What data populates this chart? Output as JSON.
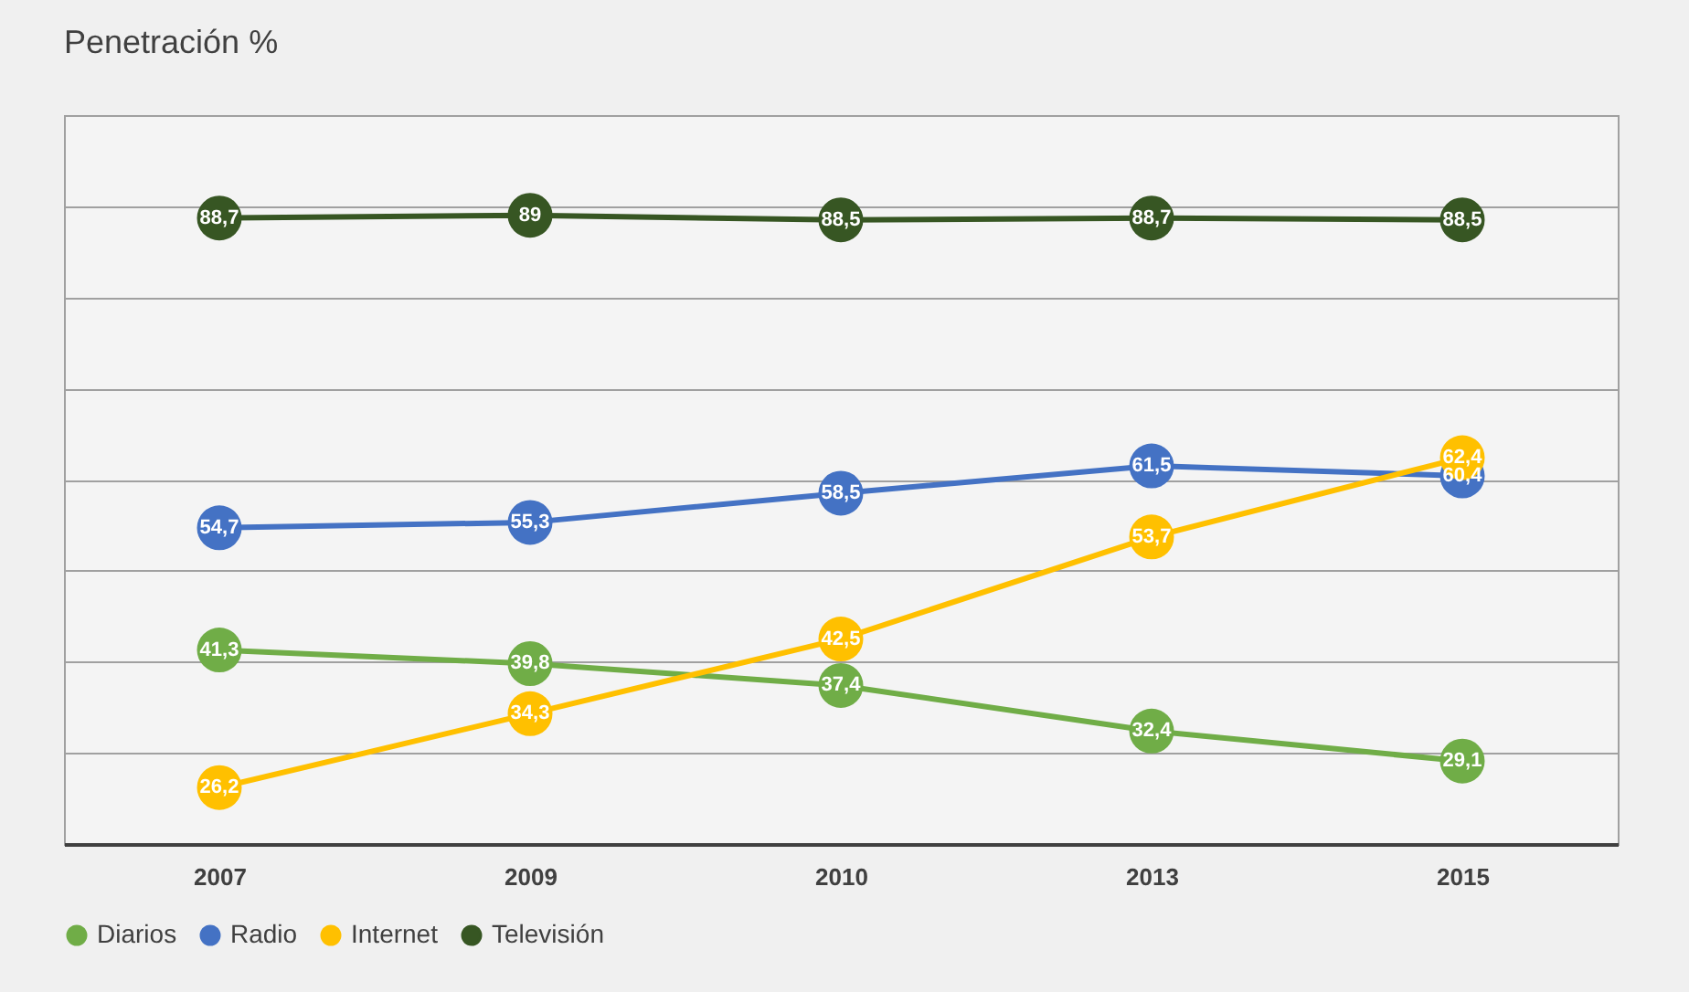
{
  "chart_data": {
    "type": "line",
    "title": "Penetración %",
    "categories": [
      "2007",
      "2009",
      "2010",
      "2013",
      "2015"
    ],
    "series": [
      {
        "name": "Diarios",
        "color": "#70ad47",
        "values": [
          41.3,
          39.8,
          37.4,
          32.4,
          29.1
        ],
        "value_labels": [
          "41,3",
          "39,8",
          "37,4",
          "32,4",
          "29,1"
        ]
      },
      {
        "name": "Radio",
        "color": "#4472c4",
        "values": [
          54.7,
          55.3,
          58.5,
          61.5,
          60.4
        ],
        "value_labels": [
          "54,7",
          "55,3",
          "58,5",
          "61,5",
          "60,4"
        ]
      },
      {
        "name": "Internet",
        "color": "#ffc000",
        "values": [
          26.2,
          34.3,
          42.5,
          53.7,
          62.4
        ],
        "value_labels": [
          "26,2",
          "34,3",
          "42,5",
          "53,7",
          "62,4"
        ]
      },
      {
        "name": "Televisión",
        "color": "#375623",
        "values": [
          88.7,
          89,
          88.5,
          88.7,
          88.5
        ],
        "value_labels": [
          "88,7",
          "89",
          "88,5",
          "88,7",
          "88,5"
        ]
      }
    ],
    "ylim": [
      20,
      100
    ],
    "yticks": [
      {
        "value": 20,
        "label": null
      },
      {
        "value": 30,
        "label": null
      },
      {
        "value": 40,
        "label": null
      },
      {
        "value": 50,
        "label": null
      },
      {
        "value": 60,
        "label": null
      },
      {
        "value": 70,
        "label": null
      },
      {
        "value": 80,
        "label": null
      },
      {
        "value": 90,
        "label": null
      },
      {
        "value": 100,
        "label": null
      }
    ],
    "tick_labels": "x",
    "grid": "y",
    "legend": "bottom",
    "marker": "circle",
    "line_style": "solid"
  }
}
